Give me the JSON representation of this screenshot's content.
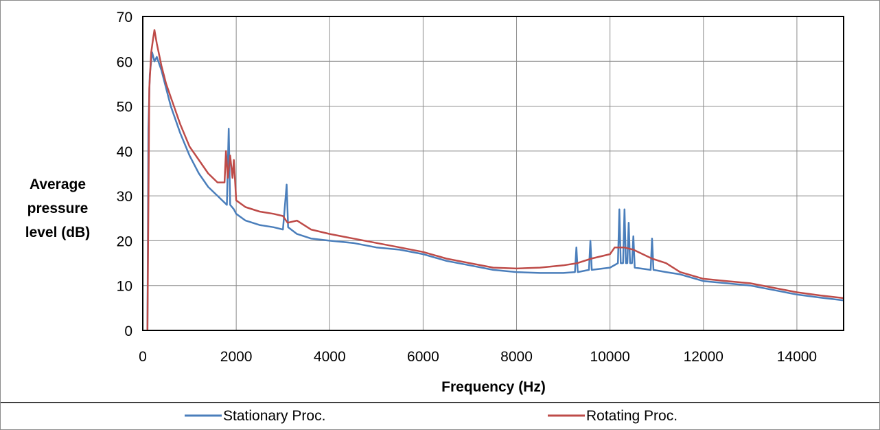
{
  "chart_data": {
    "type": "line",
    "title": "",
    "xlabel": "Frequency (Hz)",
    "ylabel_lines": [
      "Average",
      "pressure",
      "level (dB)"
    ],
    "xlim": [
      0,
      15000
    ],
    "ylim": [
      0,
      70
    ],
    "x_ticks": [
      0,
      2000,
      4000,
      6000,
      8000,
      10000,
      12000,
      14000
    ],
    "y_ticks": [
      0,
      10,
      20,
      30,
      40,
      50,
      60,
      70
    ],
    "x_tick_labels": [
      "0",
      "2000",
      "4000",
      "6000",
      "8000",
      "10000",
      "12000",
      "14000"
    ],
    "y_tick_labels": [
      "0",
      "10",
      "20",
      "30",
      "40",
      "50",
      "60",
      "70"
    ],
    "grid": true,
    "legend_position": "bottom",
    "series": [
      {
        "name": "Stationary Proc.",
        "color": "#4a7ebb",
        "points": [
          [
            100,
            0
          ],
          [
            120,
            45
          ],
          [
            150,
            57
          ],
          [
            200,
            62
          ],
          [
            250,
            60
          ],
          [
            300,
            61
          ],
          [
            400,
            58
          ],
          [
            500,
            54
          ],
          [
            600,
            50
          ],
          [
            800,
            44
          ],
          [
            1000,
            39
          ],
          [
            1200,
            35
          ],
          [
            1400,
            32
          ],
          [
            1600,
            30
          ],
          [
            1800,
            28
          ],
          [
            1840,
            45
          ],
          [
            1870,
            28
          ],
          [
            1950,
            27
          ],
          [
            2000,
            26
          ],
          [
            2200,
            24.5
          ],
          [
            2500,
            23.5
          ],
          [
            2800,
            23
          ],
          [
            3000,
            22.5
          ],
          [
            3080,
            32.5
          ],
          [
            3110,
            23
          ],
          [
            3300,
            21.5
          ],
          [
            3600,
            20.5
          ],
          [
            4000,
            20
          ],
          [
            4500,
            19.5
          ],
          [
            5000,
            18.5
          ],
          [
            5500,
            18
          ],
          [
            6000,
            17
          ],
          [
            6500,
            15.5
          ],
          [
            7000,
            14.5
          ],
          [
            7500,
            13.5
          ],
          [
            8000,
            13
          ],
          [
            8500,
            12.8
          ],
          [
            9000,
            12.8
          ],
          [
            9250,
            13
          ],
          [
            9280,
            18.5
          ],
          [
            9310,
            13
          ],
          [
            9550,
            13.5
          ],
          [
            9580,
            20
          ],
          [
            9610,
            13.5
          ],
          [
            10000,
            14
          ],
          [
            10170,
            15
          ],
          [
            10200,
            27
          ],
          [
            10230,
            15
          ],
          [
            10280,
            15
          ],
          [
            10310,
            27
          ],
          [
            10340,
            15
          ],
          [
            10370,
            15
          ],
          [
            10400,
            24
          ],
          [
            10430,
            15
          ],
          [
            10470,
            15
          ],
          [
            10500,
            21
          ],
          [
            10530,
            14
          ],
          [
            10870,
            13.5
          ],
          [
            10900,
            20.5
          ],
          [
            10930,
            13.5
          ],
          [
            11200,
            13
          ],
          [
            11500,
            12.5
          ],
          [
            12000,
            11
          ],
          [
            12500,
            10.5
          ],
          [
            13000,
            10
          ],
          [
            13500,
            9
          ],
          [
            14000,
            8
          ],
          [
            14500,
            7.3
          ],
          [
            15000,
            6.7
          ]
        ]
      },
      {
        "name": "Rotating Proc.",
        "color": "#be4b48",
        "points": [
          [
            100,
            0
          ],
          [
            140,
            54
          ],
          [
            180,
            62
          ],
          [
            220,
            65
          ],
          [
            250,
            67
          ],
          [
            300,
            64
          ],
          [
            400,
            59
          ],
          [
            500,
            55
          ],
          [
            600,
            52
          ],
          [
            800,
            46
          ],
          [
            1000,
            41
          ],
          [
            1200,
            38
          ],
          [
            1400,
            35
          ],
          [
            1600,
            33
          ],
          [
            1750,
            33
          ],
          [
            1780,
            40
          ],
          [
            1820,
            34
          ],
          [
            1870,
            39
          ],
          [
            1920,
            34
          ],
          [
            1950,
            38
          ],
          [
            2000,
            29
          ],
          [
            2200,
            27.5
          ],
          [
            2500,
            26.5
          ],
          [
            2800,
            26
          ],
          [
            3000,
            25.5
          ],
          [
            3100,
            24
          ],
          [
            3300,
            24.5
          ],
          [
            3600,
            22.5
          ],
          [
            4000,
            21.5
          ],
          [
            4500,
            20.5
          ],
          [
            5000,
            19.5
          ],
          [
            5500,
            18.5
          ],
          [
            6000,
            17.5
          ],
          [
            6500,
            16
          ],
          [
            7000,
            15
          ],
          [
            7500,
            14
          ],
          [
            8000,
            13.8
          ],
          [
            8500,
            14
          ],
          [
            9000,
            14.5
          ],
          [
            9300,
            15
          ],
          [
            9600,
            16
          ],
          [
            10000,
            17
          ],
          [
            10100,
            18.5
          ],
          [
            10300,
            18.5
          ],
          [
            10500,
            18
          ],
          [
            10700,
            17
          ],
          [
            10900,
            16
          ],
          [
            11200,
            15
          ],
          [
            11500,
            13
          ],
          [
            12000,
            11.5
          ],
          [
            12500,
            11
          ],
          [
            13000,
            10.5
          ],
          [
            13500,
            9.5
          ],
          [
            14000,
            8.5
          ],
          [
            14500,
            7.8
          ],
          [
            15000,
            7.2
          ]
        ]
      }
    ]
  }
}
